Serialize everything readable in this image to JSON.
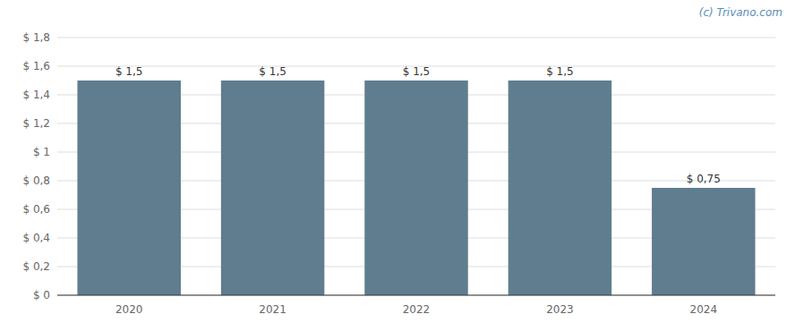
{
  "chart_data": {
    "type": "bar",
    "categories": [
      "2020",
      "2021",
      "2022",
      "2023",
      "2024"
    ],
    "values": [
      1.5,
      1.5,
      1.5,
      1.5,
      0.75
    ],
    "value_labels": [
      "$ 1,5",
      "$ 1,5",
      "$ 1,5",
      "$ 1,5",
      "$ 0,75"
    ],
    "data_labels": true,
    "color": "#607d8f",
    "ylim": [
      0,
      1.8
    ],
    "yticks": [
      {
        "value": 0,
        "label": "$ 0"
      },
      {
        "value": 0.2,
        "label": "$ 0,2"
      },
      {
        "value": 0.4,
        "label": "$ 0,4"
      },
      {
        "value": 0.6,
        "label": "$ 0,6"
      },
      {
        "value": 0.8,
        "label": "$ 0,8"
      },
      {
        "value": 1.0,
        "label": "$ 1"
      },
      {
        "value": 1.2,
        "label": "$ 1,2"
      },
      {
        "value": 1.4,
        "label": "$ 1,4"
      },
      {
        "value": 1.6,
        "label": "$ 1,6"
      },
      {
        "value": 1.8,
        "label": "$ 1,8"
      }
    ],
    "grid": true,
    "annotations": [
      "(c) Trivano.com"
    ]
  }
}
